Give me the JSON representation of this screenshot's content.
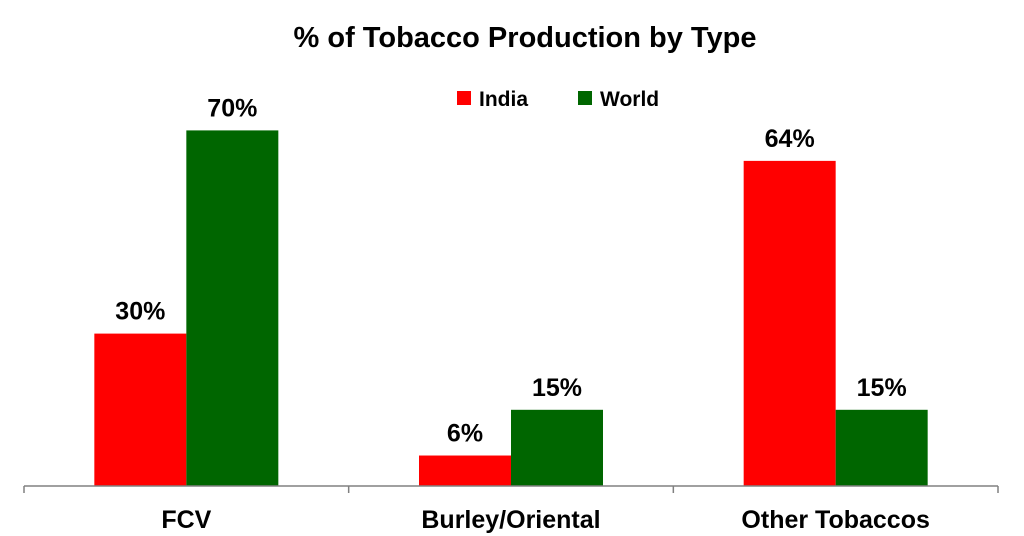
{
  "chart_data": {
    "type": "bar",
    "title": "% of Tobacco Production by Type",
    "categories": [
      "FCV",
      "Burley/Oriental",
      "Other Tobaccos"
    ],
    "series": [
      {
        "name": "India",
        "color": "#ff0000",
        "values": [
          30,
          6,
          64
        ],
        "labels": [
          "30%",
          "6%",
          "64%"
        ]
      },
      {
        "name": "World",
        "color": "#006600",
        "values": [
          70,
          15,
          15
        ],
        "labels": [
          "70%",
          "15%",
          "15%"
        ]
      }
    ],
    "xlabel": "",
    "ylabel": "",
    "ylim": [
      0,
      70
    ],
    "grid": false,
    "legend_position": "top-center"
  }
}
